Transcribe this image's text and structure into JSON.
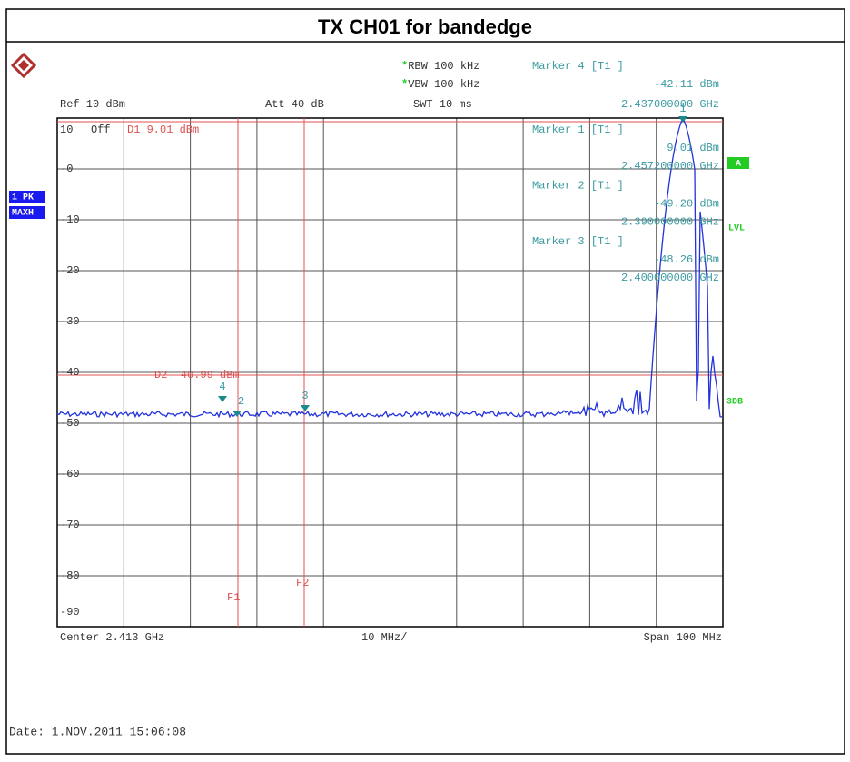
{
  "title": "TX CH01 for bandedge",
  "header": {
    "rbw": "RBW 100 kHz",
    "vbw": "VBW 100 kHz",
    "swt": "SWT 10 ms",
    "ref": "Ref 10 dBm",
    "att": "Att 40 dB",
    "marker4": "Marker 4 [T1 ]",
    "marker4_level": "-42.11 dBm",
    "marker4_freq": "2.437000000 GHz"
  },
  "markers_box": [
    {
      "name": "Marker 1 [T1 ]",
      "level": "9.01 dBm",
      "freq": "2.457200000 GHz"
    },
    {
      "name": "Marker 2 [T1 ]",
      "level": "-49.20 dBm",
      "freq": "2.390000000 GHz"
    },
    {
      "name": "Marker 3 [T1 ]",
      "level": "-48.26 dBm",
      "freq": "2.400000000 GHz"
    }
  ],
  "y_labels": [
    "10",
    "-0",
    "-10",
    "-20",
    "-30",
    "-40",
    "-50",
    "-60",
    "-70",
    "-80",
    "-90"
  ],
  "top_left": "Off",
  "lines": {
    "d1": "D1 9.01 dBm",
    "d2": "D2 -40.99 dBm",
    "f1": "F1",
    "f2": "F2"
  },
  "marker_ids": [
    "1",
    "2",
    "3",
    "4"
  ],
  "side": {
    "trace": "1 PK",
    "mode": "MAXH",
    "a": "A",
    "lvl": "LVL",
    "db3": "3DB"
  },
  "footer": {
    "center": "Center 2.413 GHz",
    "div": "10 MHz/",
    "span": "Span 100 MHz",
    "date": "Date: 1.NOV.2011  15:06:08"
  }
}
